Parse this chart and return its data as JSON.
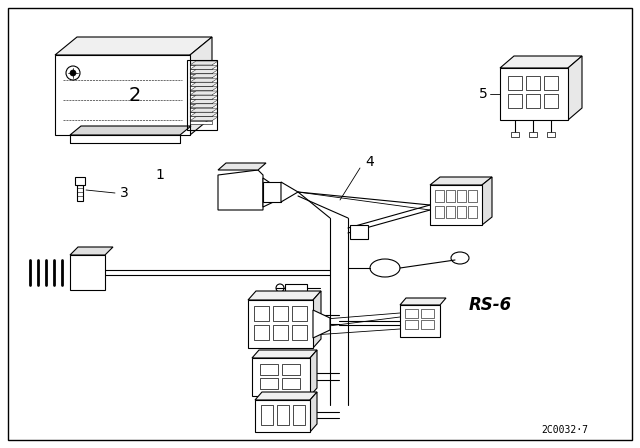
{
  "background_color": "#ffffff",
  "fig_width": 6.4,
  "fig_height": 4.48,
  "dpi": 100,
  "ref_text": "2C0032·7",
  "rs6_text": "RS-6",
  "label_fontsize": 10,
  "ref_fontsize": 7,
  "rs6_fontsize": 12,
  "border_lw": 1.0,
  "line_color": "#000000"
}
